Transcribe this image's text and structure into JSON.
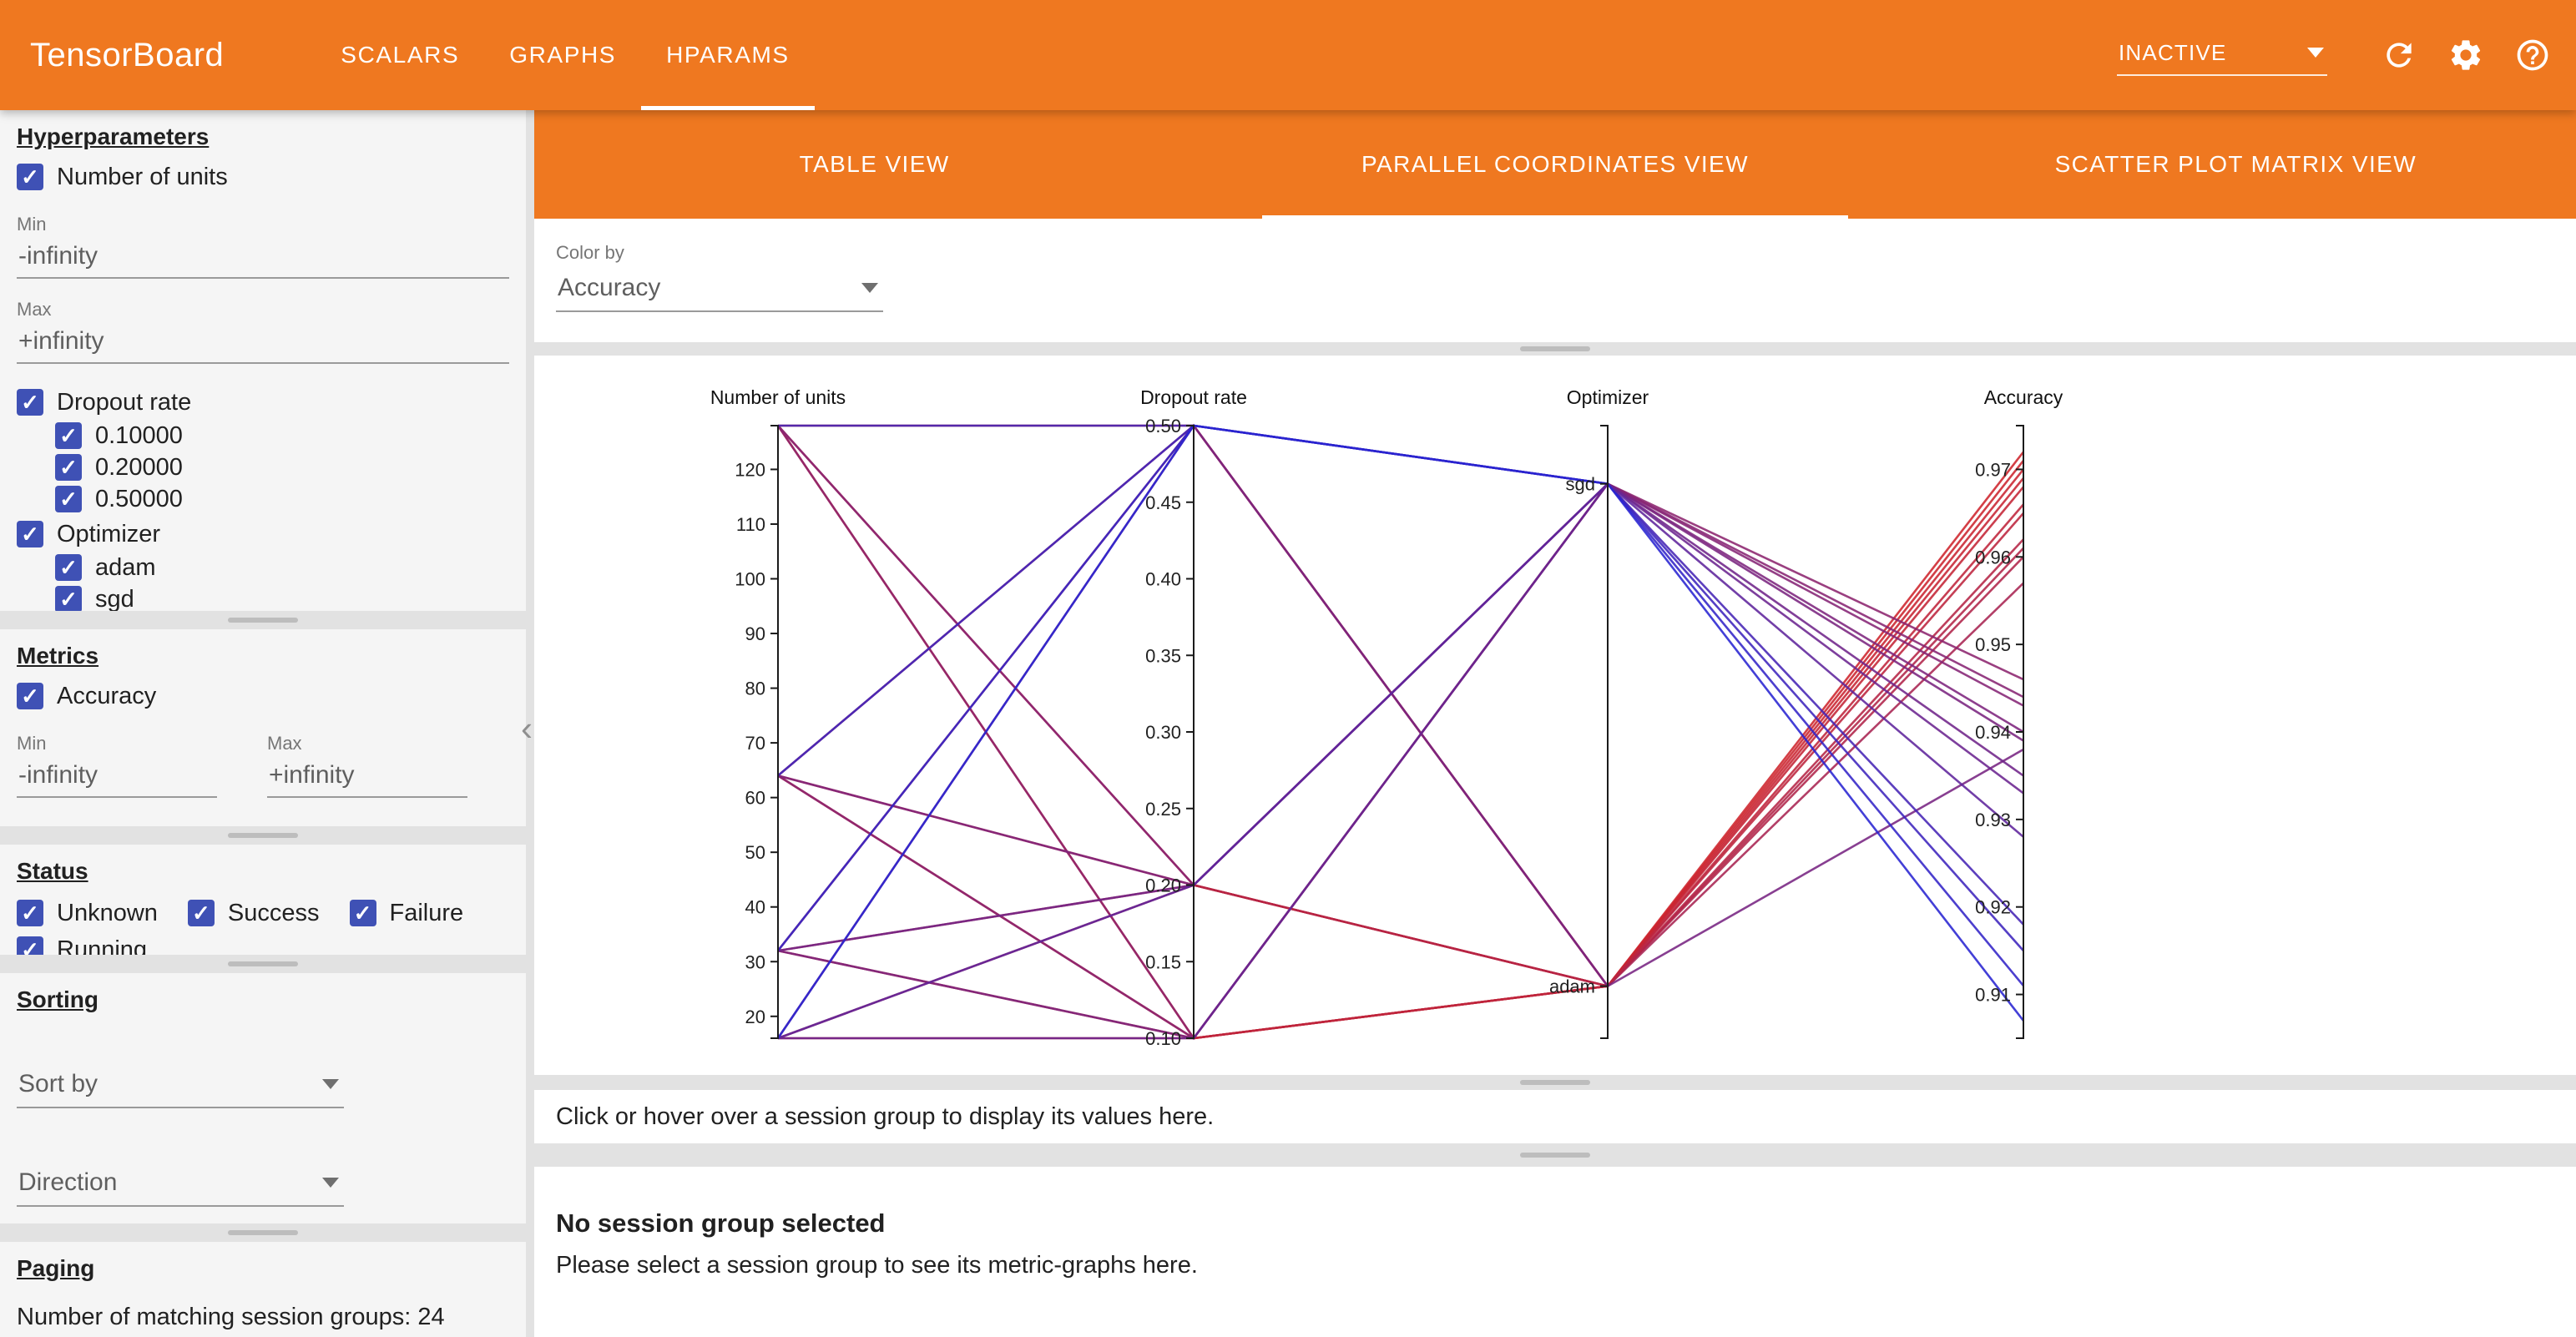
{
  "theme": {
    "brand-orange": "#ef7820",
    "checkbox-blue": "#3f51b5",
    "page-bg": "#e2e2e2",
    "section-bg": "#f5f5f5",
    "panel-bg": "#ffffff",
    "text-primary": "#212121",
    "text-secondary": "#767676",
    "underline-gray": "#9a9a9a"
  },
  "header": {
    "brand": "TensorBoard",
    "tabs": [
      {
        "label": "SCALARS",
        "active": false
      },
      {
        "label": "GRAPHS",
        "active": false
      },
      {
        "label": "HPARAMS",
        "active": true
      }
    ],
    "status_dropdown": "INACTIVE"
  },
  "sidebar": {
    "hyperparameters": {
      "title": "Hyperparameters",
      "number_of_units": {
        "label": "Number of units",
        "min_label": "Min",
        "min_value": "-infinity",
        "max_label": "Max",
        "max_value": "+infinity"
      },
      "dropout": {
        "label": "Dropout rate",
        "options": [
          "0.10000",
          "0.20000",
          "0.50000"
        ]
      },
      "optimizer": {
        "label": "Optimizer",
        "options": [
          "adam",
          "sgd"
        ]
      }
    },
    "metrics": {
      "title": "Metrics",
      "accuracy_label": "Accuracy",
      "min_label": "Min",
      "min_value": "-infinity",
      "max_label": "Max",
      "max_value": "+infinity"
    },
    "status": {
      "title": "Status",
      "options": [
        "Unknown",
        "Success",
        "Failure",
        "Running"
      ]
    },
    "sorting": {
      "title": "Sorting",
      "sort_by_placeholder": "Sort by",
      "direction_placeholder": "Direction"
    },
    "paging": {
      "title": "Paging",
      "summary": "Number of matching session groups: 24"
    }
  },
  "main": {
    "view_tabs": [
      {
        "label": "TABLE VIEW",
        "active": false
      },
      {
        "label": "PARALLEL COORDINATES VIEW",
        "active": true
      },
      {
        "label": "SCATTER PLOT MATRIX VIEW",
        "active": false
      }
    ],
    "color_by": {
      "label": "Color by",
      "value": "Accuracy"
    },
    "hover_hint": "Click or hover over a session group to display its values here.",
    "empty_state": {
      "title": "No session group selected",
      "subtitle": "Please select a session group to see its metric-graphs here."
    }
  },
  "chart_data": {
    "type": "parallel-coordinates",
    "colored_by": "Accuracy",
    "color_scale": {
      "low_color": "#2424d6",
      "high_color": "#d62424",
      "min": 0.905,
      "max": 0.975
    },
    "axes": [
      {
        "name": "Number of units",
        "key": "units",
        "type": "linear",
        "domain": [
          16,
          128
        ],
        "ticks": [
          20,
          30,
          40,
          50,
          60,
          70,
          80,
          90,
          100,
          110,
          120
        ]
      },
      {
        "name": "Dropout rate",
        "key": "dropout",
        "type": "linear",
        "domain": [
          0.1,
          0.5
        ],
        "ticks": [
          0.1,
          0.15,
          0.2,
          0.25,
          0.3,
          0.35,
          0.4,
          0.45,
          0.5
        ],
        "tick_format": 2
      },
      {
        "name": "Optimizer",
        "key": "optimizer",
        "type": "categorical",
        "categories": [
          "sgd",
          "adam"
        ],
        "category_positions": [
          0.095,
          0.915
        ]
      },
      {
        "name": "Accuracy",
        "key": "accuracy",
        "type": "linear",
        "domain": [
          0.905,
          0.975
        ],
        "ticks": [
          0.91,
          0.92,
          0.93,
          0.94,
          0.95,
          0.96,
          0.97
        ],
        "tick_format": 2
      }
    ],
    "sessions": [
      {
        "units": 128,
        "dropout": 0.1,
        "optimizer": "adam",
        "accuracy": 0.971
      },
      {
        "units": 128,
        "dropout": 0.2,
        "optimizer": "adam",
        "accuracy": 0.97
      },
      {
        "units": 128,
        "dropout": 0.5,
        "optimizer": "adam",
        "accuracy": 0.961
      },
      {
        "units": 64,
        "dropout": 0.1,
        "optimizer": "adam",
        "accuracy": 0.972
      },
      {
        "units": 64,
        "dropout": 0.2,
        "optimizer": "adam",
        "accuracy": 0.968
      },
      {
        "units": 64,
        "dropout": 0.5,
        "optimizer": "adam",
        "accuracy": 0.96
      },
      {
        "units": 32,
        "dropout": 0.1,
        "optimizer": "adam",
        "accuracy": 0.969
      },
      {
        "units": 32,
        "dropout": 0.2,
        "optimizer": "adam",
        "accuracy": 0.966
      },
      {
        "units": 32,
        "dropout": 0.5,
        "optimizer": "adam",
        "accuracy": 0.957
      },
      {
        "units": 16,
        "dropout": 0.1,
        "optimizer": "adam",
        "accuracy": 0.965
      },
      {
        "units": 16,
        "dropout": 0.2,
        "optimizer": "adam",
        "accuracy": 0.962
      },
      {
        "units": 16,
        "dropout": 0.5,
        "optimizer": "adam",
        "accuracy": 0.938
      },
      {
        "units": 128,
        "dropout": 0.1,
        "optimizer": "sgd",
        "accuracy": 0.946
      },
      {
        "units": 128,
        "dropout": 0.2,
        "optimizer": "sgd",
        "accuracy": 0.943
      },
      {
        "units": 128,
        "dropout": 0.5,
        "optimizer": "sgd",
        "accuracy": 0.918
      },
      {
        "units": 64,
        "dropout": 0.1,
        "optimizer": "sgd",
        "accuracy": 0.944
      },
      {
        "units": 64,
        "dropout": 0.2,
        "optimizer": "sgd",
        "accuracy": 0.94
      },
      {
        "units": 64,
        "dropout": 0.5,
        "optimizer": "sgd",
        "accuracy": 0.915
      },
      {
        "units": 32,
        "dropout": 0.1,
        "optimizer": "sgd",
        "accuracy": 0.939
      },
      {
        "units": 32,
        "dropout": 0.2,
        "optimizer": "sgd",
        "accuracy": 0.935
      },
      {
        "units": 32,
        "dropout": 0.5,
        "optimizer": "sgd",
        "accuracy": 0.911
      },
      {
        "units": 16,
        "dropout": 0.1,
        "optimizer": "sgd",
        "accuracy": 0.933
      },
      {
        "units": 16,
        "dropout": 0.2,
        "optimizer": "sgd",
        "accuracy": 0.928
      },
      {
        "units": 16,
        "dropout": 0.5,
        "optimizer": "sgd",
        "accuracy": 0.907
      }
    ]
  }
}
